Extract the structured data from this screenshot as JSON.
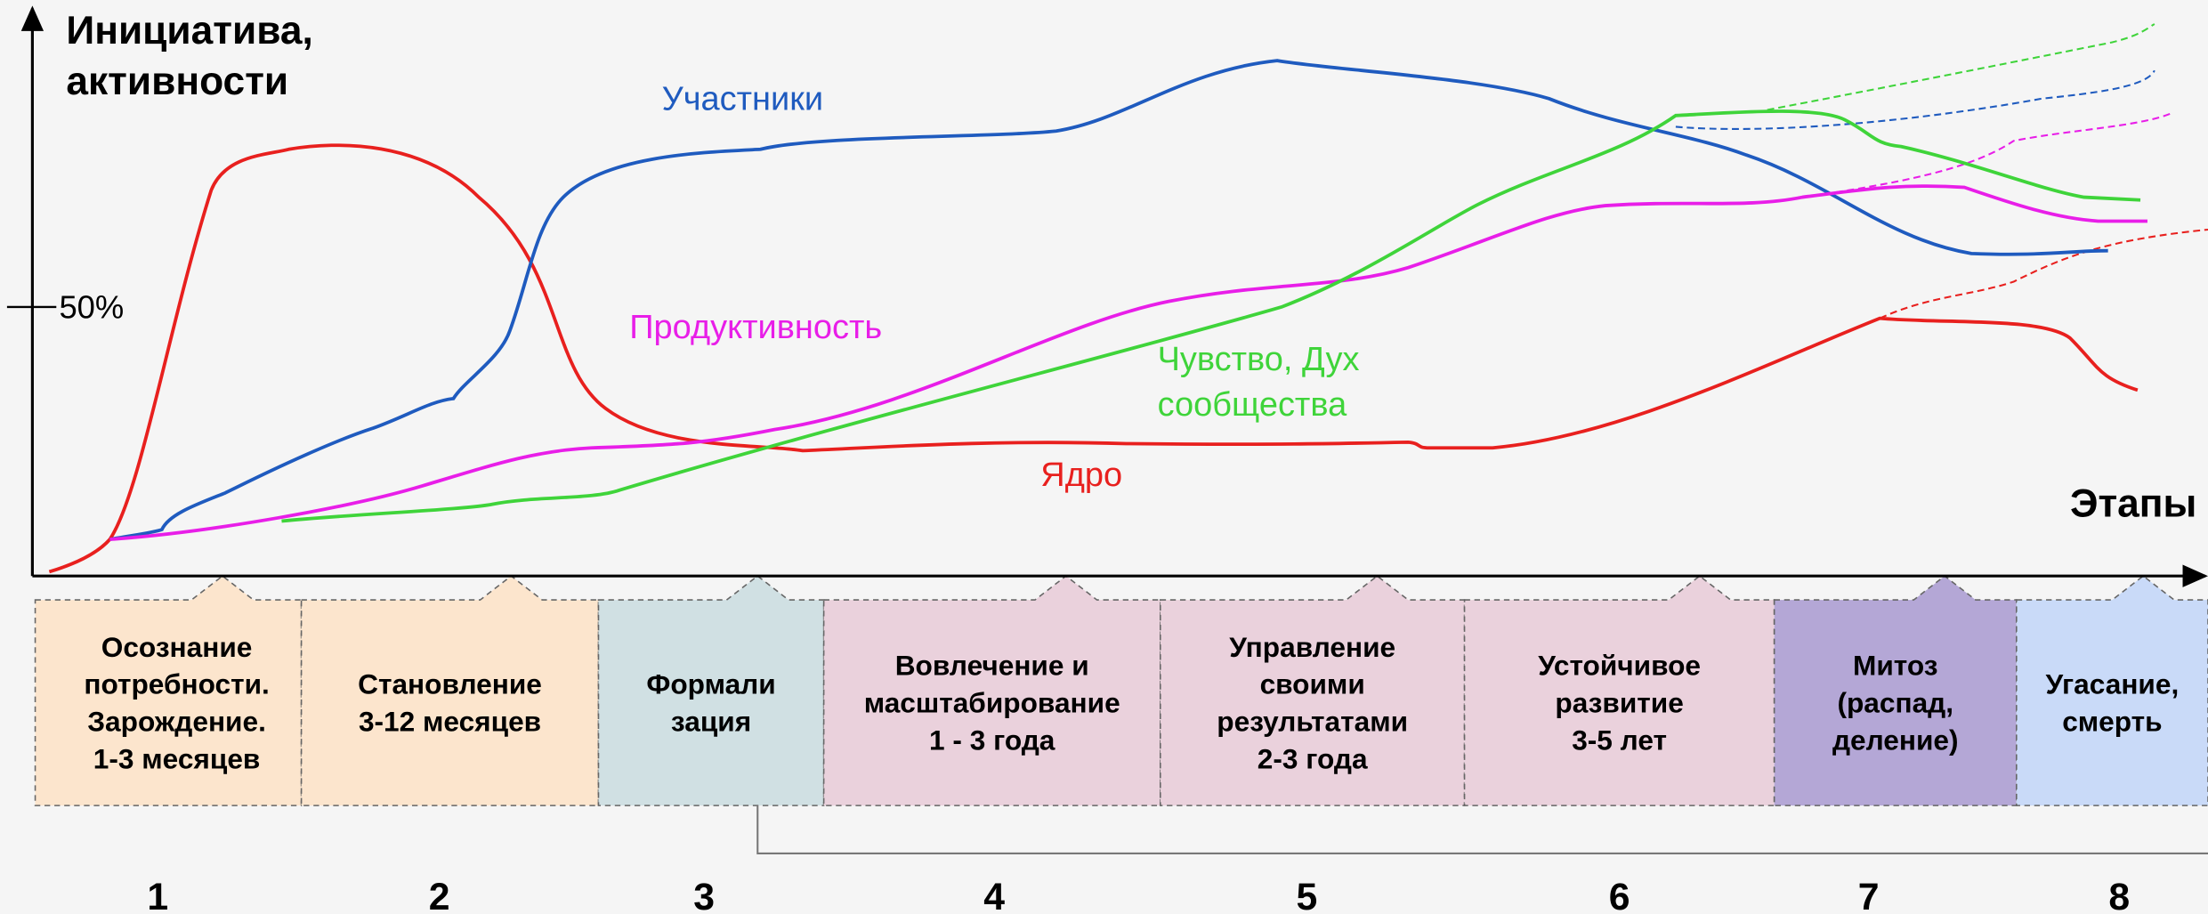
{
  "axes": {
    "y_label": [
      "Инициатива,",
      "активности"
    ],
    "x_label": "Этапы",
    "tick": "50%"
  },
  "curves": [
    {
      "name": "participants",
      "label": [
        "Участники"
      ],
      "color": "#1f5bbf"
    },
    {
      "name": "productivity",
      "label": [
        "Продуктивность"
      ],
      "color": "#e81ee8"
    },
    {
      "name": "community",
      "label": [
        "Чувство, Дух",
        "сообщества"
      ],
      "color": "#3fd43a"
    },
    {
      "name": "core",
      "label": [
        "Ядро"
      ],
      "color": "#e8201e"
    }
  ],
  "stages": [
    {
      "lines": [
        "Осознание",
        "потребности.",
        "Зарождение.",
        "1-3 месяцев"
      ],
      "number": "1",
      "color": "#fce5cd"
    },
    {
      "lines": [
        "Становление",
        "3-12 месяцев"
      ],
      "number": "2",
      "color": "#fce5cd"
    },
    {
      "lines": [
        "Формали",
        "зация"
      ],
      "number": "3",
      "color": "#d0e0e3"
    },
    {
      "lines": [
        "Вовлечение и",
        "масштабирование",
        "1 - 3 года"
      ],
      "number": "4",
      "color": "#ead1dc"
    },
    {
      "lines": [
        "Управление",
        "своими",
        "результатами",
        "2-3 года"
      ],
      "number": "5",
      "color": "#ead1dc"
    },
    {
      "lines": [
        "Устойчивое",
        "развитие",
        "3-5 лет"
      ],
      "number": "6",
      "color": "#ead1dc"
    },
    {
      "lines": [
        "Митоз",
        "(распад,",
        "деление)"
      ],
      "number": "7",
      "color": "#b4a7d6"
    },
    {
      "lines": [
        "Угасание,",
        "смерть"
      ],
      "number": "8",
      "color": "#c9daf8"
    }
  ]
}
